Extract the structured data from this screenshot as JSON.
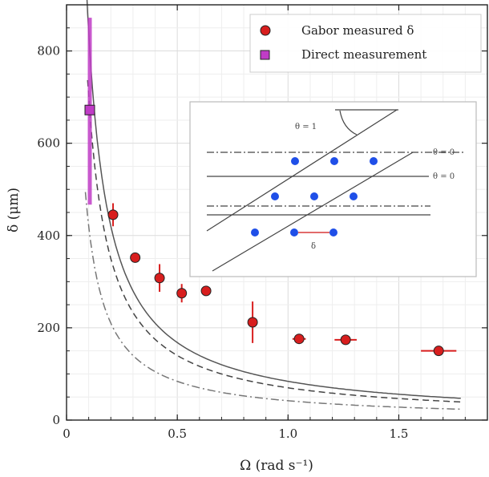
{
  "chart_data": {
    "type": "scatter",
    "xlabel": "Ω (rad s⁻¹)",
    "ylabel": "δ (μm)",
    "xlim": [
      0,
      1.9
    ],
    "ylim": [
      0,
      900
    ],
    "xticks": [
      0,
      0.5,
      1.0,
      1.5
    ],
    "xtick_labels": [
      "0",
      "0.5",
      "1.0",
      "1.5"
    ],
    "yticks": [
      0,
      200,
      400,
      600,
      800
    ],
    "ytick_labels": [
      "0",
      "200",
      "400",
      "600",
      "800"
    ],
    "grid": true,
    "legend_position": "top-right",
    "legend": [
      {
        "label": "Gabor measured δ",
        "marker": "circle",
        "color": "#d81e1e"
      },
      {
        "label": "Direct measurement",
        "marker": "square",
        "color": "#c03cc6"
      }
    ],
    "series": [
      {
        "name": "Gabor measured δ",
        "marker": "circle",
        "color": "#d81e1e",
        "points": [
          {
            "x": 0.21,
            "y": 445,
            "yerr": 25,
            "xerr": 0
          },
          {
            "x": 0.31,
            "y": 352,
            "yerr": 10,
            "xerr": 0
          },
          {
            "x": 0.42,
            "y": 308,
            "yerr": 30,
            "xerr": 0
          },
          {
            "x": 0.52,
            "y": 275,
            "yerr": 20,
            "xerr": 0
          },
          {
            "x": 0.63,
            "y": 280,
            "yerr": 8,
            "xerr": 0
          },
          {
            "x": 0.84,
            "y": 212,
            "yerr": 45,
            "xerr": 0
          },
          {
            "x": 1.05,
            "y": 176,
            "yerr": 10,
            "xerr": 0.03
          },
          {
            "x": 1.26,
            "y": 174,
            "yerr": 8,
            "xerr": 0.05
          },
          {
            "x": 1.68,
            "y": 150,
            "yerr": 6,
            "xerr": 0.08
          }
        ]
      },
      {
        "name": "Direct measurement",
        "marker": "square",
        "color": "#c03cc6",
        "points": [
          {
            "x": 0.105,
            "y": 672,
            "yerr_low": 205,
            "yerr_high": 200
          }
        ]
      }
    ],
    "curves": [
      {
        "style": "solid",
        "color": "#555555",
        "coefficient": 84,
        "x_range": [
          0.085,
          1.78
        ]
      },
      {
        "style": "dashed",
        "color": "#444444",
        "coefficient": 70,
        "x_range": [
          0.095,
          1.78
        ]
      },
      {
        "style": "dashdot",
        "color": "#777777",
        "coefficient": 42,
        "x_range": [
          0.085,
          1.78
        ]
      }
    ],
    "inset": {
      "labels": [
        "θ = 1",
        "θ = 0",
        "θ = 0",
        "δ"
      ],
      "dot_color": "#1f4fe8",
      "delta_color": "#e26a6a"
    }
  }
}
